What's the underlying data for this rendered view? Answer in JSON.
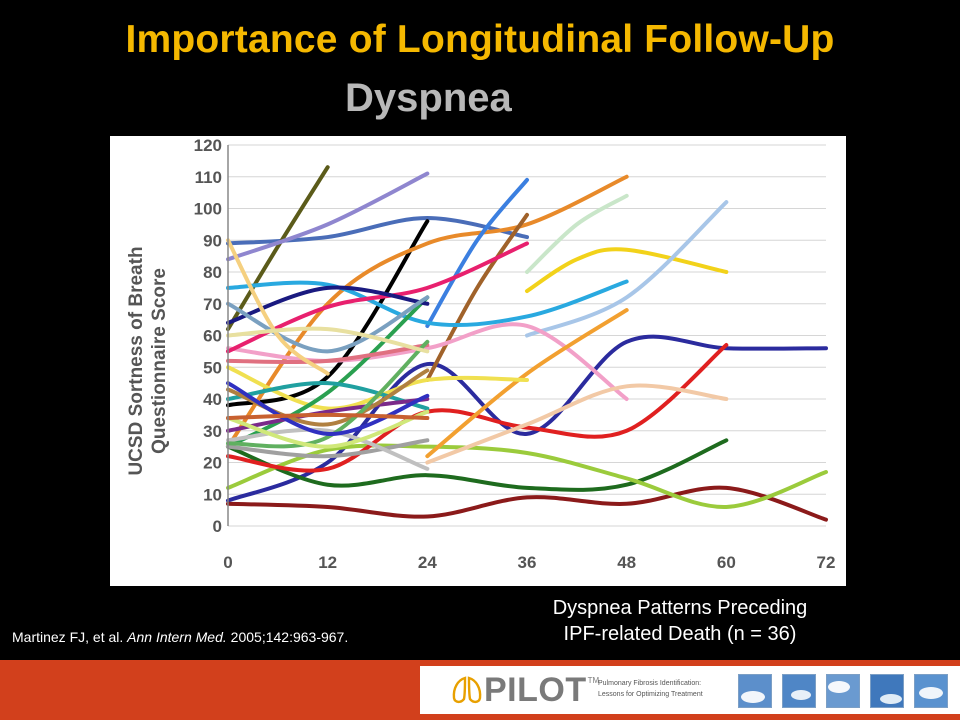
{
  "slide": {
    "title": "Importance of Longitudinal Follow-Up",
    "subtitle": "Dyspnea",
    "caption_line1": "Dyspnea Patterns Preceding",
    "caption_line2": "IPF-related Death (n = 36)",
    "citation_authors": "Martinez FJ, et al.",
    "citation_journal": "Ann Intern Med.",
    "citation_ref": "2005;142:963-967."
  },
  "colors": {
    "title": "#F5B800",
    "subtitle": "#B8B8B8",
    "footer": "#D2401C",
    "logo_accent": "#E8A000"
  },
  "footer": {
    "logo_text": "PILOT",
    "logo_tm": "TM",
    "tagline_line1": "Pulmonary Fibrosis Identification:",
    "tagline_line2": "Lessons for Optimizing Treatment"
  },
  "chart_data": {
    "type": "line",
    "ylabel_line1": "UCSD Sortness of Breath",
    "ylabel_line2": "Questionnaire Score",
    "xlabel": "",
    "xlim": [
      0,
      72
    ],
    "ylim": [
      0,
      120
    ],
    "x_ticks": [
      0,
      12,
      24,
      36,
      48,
      60,
      72
    ],
    "y_ticks": [
      0,
      10,
      20,
      30,
      40,
      50,
      60,
      70,
      80,
      90,
      100,
      110,
      120
    ],
    "grid": "horizontal",
    "legend": "none",
    "series": [
      {
        "color": "#2B2B9E",
        "points": [
          [
            0,
            8
          ],
          [
            12,
            20
          ],
          [
            24,
            51
          ],
          [
            36,
            29
          ],
          [
            48,
            58
          ],
          [
            60,
            56
          ],
          [
            72,
            56
          ]
        ]
      },
      {
        "color": "#8B1A1A",
        "points": [
          [
            0,
            7
          ],
          [
            12,
            6
          ],
          [
            24,
            3
          ],
          [
            36,
            9
          ],
          [
            48,
            7
          ],
          [
            60,
            12
          ],
          [
            72,
            2
          ]
        ]
      },
      {
        "color": "#1E6B1E",
        "points": [
          [
            0,
            25
          ],
          [
            12,
            13
          ],
          [
            24,
            16
          ],
          [
            36,
            12
          ],
          [
            48,
            13
          ],
          [
            60,
            27
          ]
        ]
      },
      {
        "color": "#9BCB3C",
        "points": [
          [
            0,
            12
          ],
          [
            12,
            24
          ],
          [
            24,
            25
          ],
          [
            36,
            23
          ],
          [
            48,
            15
          ],
          [
            60,
            6
          ],
          [
            72,
            17
          ]
        ]
      },
      {
        "color": "#E02020",
        "points": [
          [
            0,
            22
          ],
          [
            12,
            18
          ],
          [
            24,
            36
          ],
          [
            36,
            31
          ],
          [
            48,
            30
          ],
          [
            60,
            57
          ]
        ]
      },
      {
        "color": "#4A6DB8",
        "points": [
          [
            0,
            89
          ],
          [
            12,
            91
          ],
          [
            24,
            97
          ],
          [
            36,
            91
          ]
        ]
      },
      {
        "color": "#5B5B1A",
        "points": [
          [
            0,
            62
          ],
          [
            6,
            88
          ],
          [
            12,
            113
          ]
        ]
      },
      {
        "color": "#8F86CF",
        "points": [
          [
            0,
            84
          ],
          [
            12,
            95
          ],
          [
            24,
            111
          ]
        ]
      },
      {
        "color": "#000000",
        "points": [
          [
            0,
            38
          ],
          [
            12,
            47
          ],
          [
            24,
            96
          ]
        ]
      },
      {
        "color": "#E88A2A",
        "points": [
          [
            0,
            25
          ],
          [
            12,
            70
          ],
          [
            24,
            89
          ],
          [
            36,
            95
          ],
          [
            48,
            110
          ]
        ]
      },
      {
        "color": "#3B7FE0",
        "points": [
          [
            24,
            63
          ],
          [
            30,
            90
          ],
          [
            36,
            109
          ]
        ]
      },
      {
        "color": "#A0622A",
        "points": [
          [
            24,
            46
          ],
          [
            30,
            75
          ],
          [
            36,
            98
          ]
        ]
      },
      {
        "color": "#C9E6C9",
        "points": [
          [
            36,
            80
          ],
          [
            42,
            95
          ],
          [
            48,
            104
          ]
        ]
      },
      {
        "color": "#F2D21A",
        "points": [
          [
            36,
            74
          ],
          [
            42,
            84
          ],
          [
            48,
            87
          ],
          [
            60,
            80
          ]
        ]
      },
      {
        "color": "#A8C6E8",
        "points": [
          [
            36,
            60
          ],
          [
            48,
            72
          ],
          [
            60,
            102
          ]
        ]
      },
      {
        "color": "#29A9E0",
        "points": [
          [
            0,
            75
          ],
          [
            12,
            76
          ],
          [
            24,
            64
          ],
          [
            36,
            66
          ],
          [
            48,
            77
          ]
        ]
      },
      {
        "color": "#F2A0C8",
        "points": [
          [
            0,
            56
          ],
          [
            12,
            52
          ],
          [
            24,
            56
          ],
          [
            36,
            63
          ],
          [
            48,
            40
          ]
        ]
      },
      {
        "color": "#E8206E",
        "points": [
          [
            0,
            55
          ],
          [
            12,
            69
          ],
          [
            24,
            75
          ],
          [
            36,
            89
          ]
        ]
      },
      {
        "color": "#F2C9A6",
        "points": [
          [
            24,
            20
          ],
          [
            36,
            32
          ],
          [
            48,
            44
          ],
          [
            60,
            40
          ]
        ]
      },
      {
        "color": "#F2A030",
        "points": [
          [
            24,
            22
          ],
          [
            36,
            48
          ],
          [
            48,
            68
          ]
        ]
      },
      {
        "color": "#F0E050",
        "points": [
          [
            0,
            50
          ],
          [
            12,
            37
          ],
          [
            24,
            46
          ],
          [
            36,
            46
          ]
        ]
      },
      {
        "color": "#2AA050",
        "points": [
          [
            0,
            25
          ],
          [
            12,
            42
          ],
          [
            24,
            72
          ]
        ]
      },
      {
        "color": "#20A0A0",
        "points": [
          [
            0,
            40
          ],
          [
            12,
            45
          ],
          [
            24,
            37
          ]
        ]
      },
      {
        "color": "#7A2A8A",
        "points": [
          [
            0,
            30
          ],
          [
            12,
            36
          ],
          [
            24,
            40
          ]
        ]
      },
      {
        "color": "#A0A0A0",
        "points": [
          [
            0,
            25
          ],
          [
            12,
            22
          ],
          [
            24,
            27
          ]
        ]
      },
      {
        "color": "#C0C0C0",
        "points": [
          [
            0,
            27
          ],
          [
            12,
            30
          ],
          [
            24,
            18
          ]
        ]
      },
      {
        "color": "#1A1A80",
        "points": [
          [
            0,
            64
          ],
          [
            12,
            75
          ],
          [
            24,
            70
          ]
        ]
      },
      {
        "color": "#7AA0C0",
        "points": [
          [
            0,
            70
          ],
          [
            12,
            55
          ],
          [
            24,
            72
          ]
        ]
      },
      {
        "color": "#E07080",
        "points": [
          [
            0,
            52
          ],
          [
            12,
            52
          ],
          [
            24,
            57
          ]
        ]
      },
      {
        "color": "#B08040",
        "points": [
          [
            0,
            43
          ],
          [
            12,
            32
          ],
          [
            24,
            49
          ]
        ]
      },
      {
        "color": "#60B060",
        "points": [
          [
            0,
            26
          ],
          [
            12,
            28
          ],
          [
            24,
            58
          ]
        ]
      },
      {
        "color": "#F5D080",
        "points": [
          [
            0,
            90
          ],
          [
            6,
            60
          ],
          [
            12,
            48
          ]
        ]
      },
      {
        "color": "#D0E87A",
        "points": [
          [
            0,
            34
          ],
          [
            12,
            25
          ],
          [
            24,
            36
          ]
        ]
      },
      {
        "color": "#3030C0",
        "points": [
          [
            0,
            45
          ],
          [
            12,
            29
          ],
          [
            24,
            41
          ]
        ]
      },
      {
        "color": "#C86030",
        "points": [
          [
            0,
            34
          ],
          [
            12,
            35
          ],
          [
            24,
            34
          ]
        ]
      },
      {
        "color": "#E8E0A0",
        "points": [
          [
            0,
            60
          ],
          [
            12,
            62
          ],
          [
            24,
            55
          ]
        ]
      }
    ]
  }
}
